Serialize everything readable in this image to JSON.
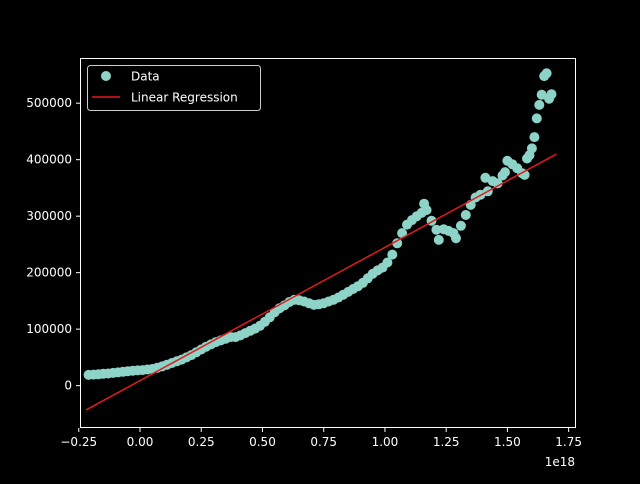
{
  "chart_data": {
    "type": "scatter",
    "title": "",
    "xlabel": "",
    "ylabel": "",
    "x_offset_label": "1e18",
    "xlim": [
      -0.245,
      1.78
    ],
    "ylim": [
      -75000,
      580000
    ],
    "xticks": [
      -0.25,
      0.0,
      0.25,
      0.5,
      0.75,
      1.0,
      1.25,
      1.5,
      1.75
    ],
    "xtick_labels": [
      "−0.25",
      "0.00",
      "0.25",
      "0.50",
      "0.75",
      "1.00",
      "1.25",
      "1.50",
      "1.75"
    ],
    "yticks": [
      0,
      100000,
      200000,
      300000,
      400000,
      500000
    ],
    "ytick_labels": [
      "0",
      "100000",
      "200000",
      "300000",
      "400000",
      "500000"
    ],
    "grid": false,
    "legend": {
      "placement": "upper-left",
      "entries": [
        {
          "label": "Data",
          "kind": "marker",
          "color": "#8dd3c7"
        },
        {
          "label": "Linear Regression",
          "kind": "line",
          "color": "#e31a1c"
        }
      ]
    },
    "series": [
      {
        "name": "Data",
        "kind": "scatter",
        "color": "#8dd3c7",
        "points": [
          [
            -0.21,
            19000
          ],
          [
            -0.19,
            19500
          ],
          [
            -0.17,
            20000
          ],
          [
            -0.15,
            21000
          ],
          [
            -0.13,
            21500
          ],
          [
            -0.11,
            22500
          ],
          [
            -0.09,
            23500
          ],
          [
            -0.07,
            24500
          ],
          [
            -0.05,
            25500
          ],
          [
            -0.03,
            26500
          ],
          [
            -0.01,
            27000
          ],
          [
            0.01,
            27500
          ],
          [
            0.03,
            28500
          ],
          [
            0.05,
            29500
          ],
          [
            0.07,
            31500
          ],
          [
            0.09,
            34000
          ],
          [
            0.11,
            37000
          ],
          [
            0.13,
            40000
          ],
          [
            0.15,
            43000
          ],
          [
            0.17,
            46000
          ],
          [
            0.19,
            50000
          ],
          [
            0.21,
            54000
          ],
          [
            0.23,
            59000
          ],
          [
            0.25,
            64000
          ],
          [
            0.27,
            69000
          ],
          [
            0.29,
            73000
          ],
          [
            0.31,
            77000
          ],
          [
            0.33,
            80000
          ],
          [
            0.35,
            83000
          ],
          [
            0.37,
            86000
          ],
          [
            0.39,
            86000
          ],
          [
            0.41,
            89000
          ],
          [
            0.43,
            93000
          ],
          [
            0.45,
            97000
          ],
          [
            0.47,
            101000
          ],
          [
            0.49,
            106000
          ],
          [
            0.51,
            113000
          ],
          [
            0.53,
            121000
          ],
          [
            0.55,
            130000
          ],
          [
            0.57,
            137000
          ],
          [
            0.59,
            142000
          ],
          [
            0.61,
            148000
          ],
          [
            0.63,
            152000
          ],
          [
            0.65,
            151000
          ],
          [
            0.67,
            149000
          ],
          [
            0.69,
            146000
          ],
          [
            0.71,
            143000
          ],
          [
            0.73,
            144000
          ],
          [
            0.75,
            146000
          ],
          [
            0.77,
            149000
          ],
          [
            0.79,
            152000
          ],
          [
            0.81,
            156000
          ],
          [
            0.83,
            161000
          ],
          [
            0.85,
            166000
          ],
          [
            0.87,
            171000
          ],
          [
            0.89,
            176000
          ],
          [
            0.91,
            182000
          ],
          [
            0.93,
            190000
          ],
          [
            0.95,
            198000
          ],
          [
            0.97,
            204000
          ],
          [
            0.99,
            209000
          ],
          [
            1.01,
            218000
          ],
          [
            1.03,
            232000
          ],
          [
            1.05,
            252000
          ],
          [
            1.07,
            270000
          ],
          [
            1.09,
            285000
          ],
          [
            1.11,
            293000
          ],
          [
            1.13,
            300000
          ],
          [
            1.15,
            306000
          ],
          [
            1.16,
            322000
          ],
          [
            1.17,
            311000
          ],
          [
            1.19,
            292000
          ],
          [
            1.21,
            276000
          ],
          [
            1.22,
            258000
          ],
          [
            1.24,
            277000
          ],
          [
            1.26,
            274000
          ],
          [
            1.28,
            270000
          ],
          [
            1.29,
            261000
          ],
          [
            1.31,
            283000
          ],
          [
            1.33,
            302000
          ],
          [
            1.35,
            320000
          ],
          [
            1.37,
            333000
          ],
          [
            1.39,
            338000
          ],
          [
            1.41,
            368000
          ],
          [
            1.42,
            344000
          ],
          [
            1.44,
            362000
          ],
          [
            1.46,
            358000
          ],
          [
            1.48,
            372000
          ],
          [
            1.49,
            378000
          ],
          [
            1.5,
            398000
          ],
          [
            1.52,
            392000
          ],
          [
            1.54,
            385000
          ],
          [
            1.56,
            376000
          ],
          [
            1.57,
            373000
          ],
          [
            1.58,
            402000
          ],
          [
            1.59,
            408000
          ],
          [
            1.6,
            420000
          ],
          [
            1.61,
            440000
          ],
          [
            1.62,
            473000
          ],
          [
            1.63,
            497000
          ],
          [
            1.64,
            515000
          ],
          [
            1.65,
            548000
          ],
          [
            1.66,
            553000
          ],
          [
            1.67,
            508000
          ],
          [
            1.68,
            516000
          ]
        ]
      },
      {
        "name": "Linear Regression",
        "kind": "line",
        "color": "#e31a1c",
        "points": [
          [
            -0.22,
            -43000
          ],
          [
            1.7,
            410000
          ]
        ]
      }
    ]
  }
}
